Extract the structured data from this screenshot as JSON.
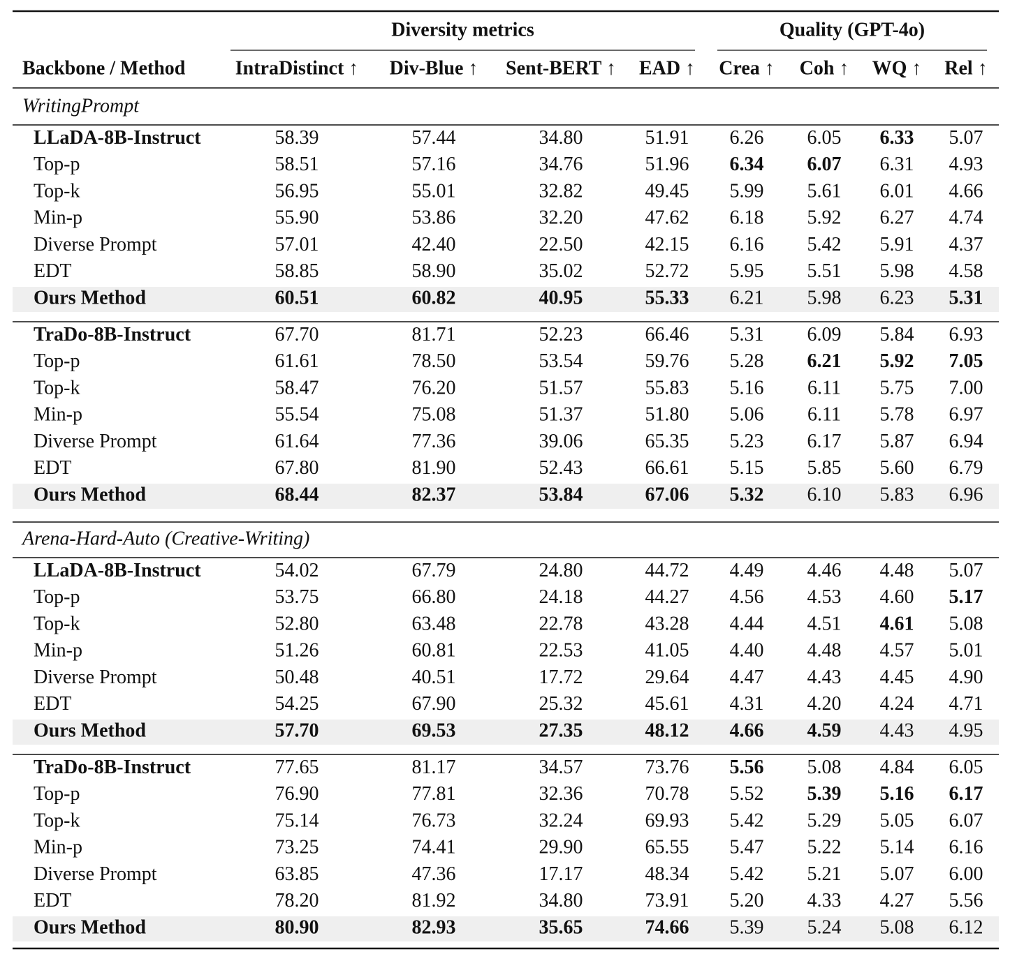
{
  "header": {
    "group_headers": [
      {
        "label": "Diversity metrics",
        "span": 4
      },
      {
        "label": "Quality (GPT-4o)",
        "span": 4
      }
    ],
    "columns": [
      "Backbone / Method",
      "IntraDistinct ↑",
      "Div-Blue ↑",
      "Sent-BERT ↑",
      "EAD ↑",
      "Crea ↑",
      "Coh ↑",
      "WQ ↑",
      "Rel ↑"
    ]
  },
  "sections": [
    {
      "title": "WritingPrompt",
      "blocks": [
        {
          "rows": [
            {
              "method": "LLaDA-8B-Instruct",
              "bold_name": true,
              "values": [
                "58.39",
                "57.44",
                "34.80",
                "51.91",
                "6.26",
                "6.05",
                "6.33",
                "5.07"
              ],
              "bold": [
                6
              ]
            },
            {
              "method": "Top-p",
              "values": [
                "58.51",
                "57.16",
                "34.76",
                "51.96",
                "6.34",
                "6.07",
                "6.31",
                "4.93"
              ],
              "bold": [
                4,
                5
              ]
            },
            {
              "method": "Top-k",
              "values": [
                "56.95",
                "55.01",
                "32.82",
                "49.45",
                "5.99",
                "5.61",
                "6.01",
                "4.66"
              ],
              "bold": []
            },
            {
              "method": "Min-p",
              "values": [
                "55.90",
                "53.86",
                "32.20",
                "47.62",
                "6.18",
                "5.92",
                "6.27",
                "4.74"
              ],
              "bold": []
            },
            {
              "method": "Diverse Prompt",
              "values": [
                "57.01",
                "42.40",
                "22.50",
                "42.15",
                "6.16",
                "5.42",
                "5.91",
                "4.37"
              ],
              "bold": []
            },
            {
              "method": "EDT",
              "values": [
                "58.85",
                "58.90",
                "35.02",
                "52.72",
                "5.95",
                "5.51",
                "5.98",
                "4.58"
              ],
              "bold": []
            },
            {
              "method": "Ours Method",
              "bold_name": true,
              "highlight": true,
              "values": [
                "60.51",
                "60.82",
                "40.95",
                "55.33",
                "6.21",
                "5.98",
                "6.23",
                "5.31"
              ],
              "bold": [
                0,
                1,
                2,
                3,
                7
              ]
            }
          ]
        },
        {
          "rows": [
            {
              "method": "TraDo-8B-Instruct",
              "bold_name": true,
              "values": [
                "67.70",
                "81.71",
                "52.23",
                "66.46",
                "5.31",
                "6.09",
                "5.84",
                "6.93"
              ],
              "bold": []
            },
            {
              "method": "Top-p",
              "values": [
                "61.61",
                "78.50",
                "53.54",
                "59.76",
                "5.28",
                "6.21",
                "5.92",
                "7.05"
              ],
              "bold": [
                5,
                6,
                7
              ]
            },
            {
              "method": "Top-k",
              "values": [
                "58.47",
                "76.20",
                "51.57",
                "55.83",
                "5.16",
                "6.11",
                "5.75",
                "7.00"
              ],
              "bold": []
            },
            {
              "method": "Min-p",
              "values": [
                "55.54",
                "75.08",
                "51.37",
                "51.80",
                "5.06",
                "6.11",
                "5.78",
                "6.97"
              ],
              "bold": []
            },
            {
              "method": "Diverse Prompt",
              "values": [
                "61.64",
                "77.36",
                "39.06",
                "65.35",
                "5.23",
                "6.17",
                "5.87",
                "6.94"
              ],
              "bold": []
            },
            {
              "method": "EDT",
              "values": [
                "67.80",
                "81.90",
                "52.43",
                "66.61",
                "5.15",
                "5.85",
                "5.60",
                "6.79"
              ],
              "bold": []
            },
            {
              "method": "Ours Method",
              "bold_name": true,
              "highlight": true,
              "values": [
                "68.44",
                "82.37",
                "53.84",
                "67.06",
                "5.32",
                "6.10",
                "5.83",
                "6.96"
              ],
              "bold": [
                0,
                1,
                2,
                3,
                4
              ]
            }
          ]
        }
      ]
    },
    {
      "title": "Arena-Hard-Auto (Creative-Writing)",
      "blocks": [
        {
          "rows": [
            {
              "method": "LLaDA-8B-Instruct",
              "bold_name": true,
              "values": [
                "54.02",
                "67.79",
                "24.80",
                "44.72",
                "4.49",
                "4.46",
                "4.48",
                "5.07"
              ],
              "bold": []
            },
            {
              "method": "Top-p",
              "values": [
                "53.75",
                "66.80",
                "24.18",
                "44.27",
                "4.56",
                "4.53",
                "4.60",
                "5.17"
              ],
              "bold": [
                7
              ]
            },
            {
              "method": "Top-k",
              "values": [
                "52.80",
                "63.48",
                "22.78",
                "43.28",
                "4.44",
                "4.51",
                "4.61",
                "5.08"
              ],
              "bold": [
                6
              ]
            },
            {
              "method": "Min-p",
              "values": [
                "51.26",
                "60.81",
                "22.53",
                "41.05",
                "4.40",
                "4.48",
                "4.57",
                "5.01"
              ],
              "bold": []
            },
            {
              "method": "Diverse Prompt",
              "values": [
                "50.48",
                "40.51",
                "17.72",
                "29.64",
                "4.47",
                "4.43",
                "4.45",
                "4.90"
              ],
              "bold": []
            },
            {
              "method": "EDT",
              "values": [
                "54.25",
                "67.90",
                "25.32",
                "45.61",
                "4.31",
                "4.20",
                "4.24",
                "4.71"
              ],
              "bold": []
            },
            {
              "method": "Ours Method",
              "bold_name": true,
              "highlight": true,
              "values": [
                "57.70",
                "69.53",
                "27.35",
                "48.12",
                "4.66",
                "4.59",
                "4.43",
                "4.95"
              ],
              "bold": [
                0,
                1,
                2,
                3,
                4,
                5
              ]
            }
          ]
        },
        {
          "rows": [
            {
              "method": "TraDo-8B-Instruct",
              "bold_name": true,
              "values": [
                "77.65",
                "81.17",
                "34.57",
                "73.76",
                "5.56",
                "5.08",
                "4.84",
                "6.05"
              ],
              "bold": [
                4
              ]
            },
            {
              "method": "Top-p",
              "values": [
                "76.90",
                "77.81",
                "32.36",
                "70.78",
                "5.52",
                "5.39",
                "5.16",
                "6.17"
              ],
              "bold": [
                5,
                6,
                7
              ]
            },
            {
              "method": "Top-k",
              "values": [
                "75.14",
                "76.73",
                "32.24",
                "69.93",
                "5.42",
                "5.29",
                "5.05",
                "6.07"
              ],
              "bold": []
            },
            {
              "method": "Min-p",
              "values": [
                "73.25",
                "74.41",
                "29.90",
                "65.55",
                "5.47",
                "5.22",
                "5.14",
                "6.16"
              ],
              "bold": []
            },
            {
              "method": "Diverse Prompt",
              "values": [
                "63.85",
                "47.36",
                "17.17",
                "48.34",
                "5.42",
                "5.21",
                "5.07",
                "6.00"
              ],
              "bold": []
            },
            {
              "method": "EDT",
              "values": [
                "78.20",
                "81.92",
                "34.80",
                "73.91",
                "5.20",
                "4.33",
                "4.27",
                "5.56"
              ],
              "bold": []
            },
            {
              "method": "Ours Method",
              "bold_name": true,
              "highlight": true,
              "values": [
                "80.90",
                "82.93",
                "35.65",
                "74.66",
                "5.39",
                "5.24",
                "5.08",
                "6.12"
              ],
              "bold": [
                0,
                1,
                2,
                3
              ]
            }
          ]
        }
      ]
    }
  ]
}
